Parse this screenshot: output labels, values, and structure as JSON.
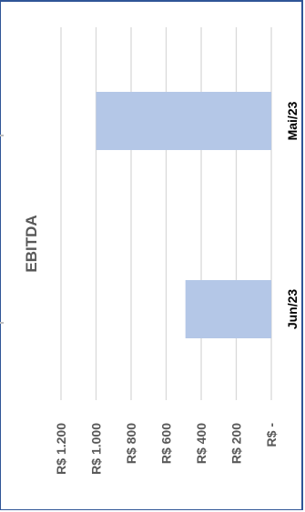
{
  "chart_data": {
    "type": "bar",
    "orientation": "rotated",
    "title": "EBITDA",
    "categories": [
      "Mai/23",
      "Jun/23"
    ],
    "series": [
      {
        "values": [
          1000,
          490
        ]
      }
    ],
    "value_ticks": [
      "R$ -",
      "R$ 200",
      "R$ 400",
      "R$ 600",
      "R$ 800",
      "R$ 1.000",
      "R$ 1.200"
    ],
    "ylim": [
      0,
      1200
    ],
    "grid": true,
    "legend": "none",
    "colors": {
      "bar": "#b4c7e7",
      "grid": "#d9d9d9",
      "frame": "#2f5597",
      "text": "#595959"
    }
  }
}
